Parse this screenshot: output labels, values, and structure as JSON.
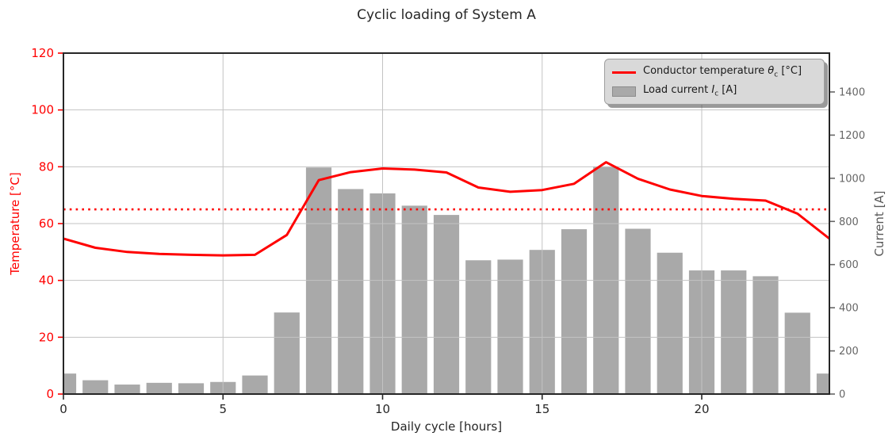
{
  "title": "Cyclic loading of System A",
  "colors": {
    "temperature_line": "#ff0000",
    "threshold_line": "#ff0000",
    "current_bar": "#a9a9a9",
    "grid": "#c3c3c3",
    "spine": "#262626",
    "x_tick_text": "#262626",
    "left_tick_text": "#ff0000",
    "right_tick_text": "#666666",
    "legend_bg": "#d9d9d9"
  },
  "legend": {
    "entries": [
      {
        "type": "line",
        "prefix": "Conductor temperature ",
        "symbol": "θ",
        "sub": "c",
        "suffix": " [°C]"
      },
      {
        "type": "patch",
        "prefix": "Load current ",
        "symbol": "I",
        "sub": "c",
        "suffix": " [A]"
      }
    ]
  },
  "chart_data": {
    "type": "combo",
    "title": "Cyclic loading of System A",
    "x": [
      0,
      1,
      2,
      3,
      4,
      5,
      6,
      7,
      8,
      9,
      10,
      11,
      12,
      13,
      14,
      15,
      16,
      17,
      18,
      19,
      20,
      21,
      22,
      23,
      24
    ],
    "series": [
      {
        "name": "Conductor temperature θc [°C]",
        "type": "line",
        "axis": "left",
        "color": "#ff0000",
        "values": [
          54.7,
          51.5,
          50.0,
          49.3,
          49.0,
          48.8,
          49.0,
          56.0,
          75.3,
          78.1,
          79.4,
          79.0,
          78.0,
          72.7,
          71.2,
          71.8,
          74.0,
          81.6,
          75.8,
          72.0,
          69.7,
          68.7,
          68.1,
          63.5,
          54.7
        ]
      },
      {
        "name": "Load current Ic [A]",
        "type": "bar",
        "axis": "right",
        "color": "#a9a9a9",
        "bar_width_x": 0.8,
        "values": [
          95,
          64,
          44,
          52,
          50,
          56,
          86,
          378,
          1050,
          950,
          930,
          873,
          830,
          620,
          623,
          668,
          764,
          1055,
          766,
          655,
          573,
          573,
          546,
          377,
          95
        ]
      }
    ],
    "threshold": {
      "value": 65,
      "axis": "left",
      "style": "dotted",
      "color": "#ff0000"
    },
    "axes": {
      "x": {
        "label": "Daily cycle [hours]",
        "ticks": [
          0,
          5,
          10,
          15,
          20
        ],
        "range": [
          0,
          24
        ]
      },
      "left": {
        "label": "Temperature [°C]",
        "ticks": [
          0,
          20,
          40,
          60,
          80,
          100,
          120
        ],
        "range": [
          0,
          120
        ]
      },
      "right": {
        "label": "Current [A]",
        "ticks": [
          0,
          200,
          400,
          600,
          800,
          1000,
          1200,
          1400
        ],
        "range": [
          0,
          1580
        ]
      }
    },
    "grid": true,
    "legend_position": "upper right"
  }
}
